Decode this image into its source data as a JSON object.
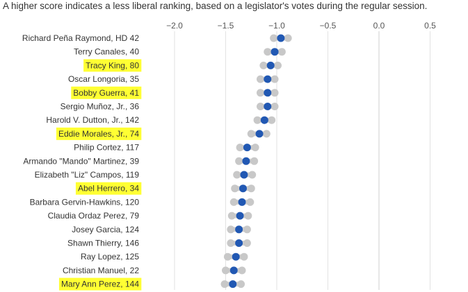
{
  "subtitle": "A higher score indicates a less liberal ranking, based on a legislator's votes during the regular session.",
  "colors": {
    "point": "#2158b3",
    "interval": "#c8c8c8",
    "highlight": "#ffff33",
    "grid": "#e2e2e2"
  },
  "chart_data": {
    "type": "scatter",
    "xlim": [
      -2.3,
      0.85
    ],
    "xticks": [
      -2.0,
      -1.5,
      -1.0,
      -0.5,
      0.0,
      0.5
    ],
    "xtick_labels": [
      "−2.0",
      "−1.5",
      "−1.0",
      "−0.5",
      "0.0",
      "0.5"
    ],
    "grid": true,
    "rows": [
      {
        "label": "Richard Peña Raymond, HD 42",
        "score": -0.96,
        "low": -1.03,
        "high": -0.89,
        "highlight": false
      },
      {
        "label": "Terry Canales, 40",
        "score": -1.02,
        "low": -1.09,
        "high": -0.95,
        "highlight": false
      },
      {
        "label": "Tracy King, 80",
        "score": -1.06,
        "low": -1.13,
        "high": -0.99,
        "highlight": true
      },
      {
        "label": "Oscar Longoria, 35",
        "score": -1.09,
        "low": -1.16,
        "high": -1.02,
        "highlight": false
      },
      {
        "label": "Bobby Guerra, 41",
        "score": -1.09,
        "low": -1.16,
        "high": -1.02,
        "highlight": true
      },
      {
        "label": "Sergio Muñoz, Jr., 36",
        "score": -1.09,
        "low": -1.16,
        "high": -1.02,
        "highlight": false
      },
      {
        "label": "Harold V. Dutton, Jr., 142",
        "score": -1.12,
        "low": -1.19,
        "high": -1.05,
        "highlight": false
      },
      {
        "label": "Eddie Morales, Jr., 74",
        "score": -1.17,
        "low": -1.25,
        "high": -1.1,
        "highlight": true
      },
      {
        "label": "Philip Cortez, 117",
        "score": -1.29,
        "low": -1.36,
        "high": -1.21,
        "highlight": false
      },
      {
        "label": "Armando \"Mando\" Martinez, 39",
        "score": -1.3,
        "low": -1.37,
        "high": -1.22,
        "highlight": false
      },
      {
        "label": "Elizabeth \"Liz\" Campos, 119",
        "score": -1.32,
        "low": -1.39,
        "high": -1.24,
        "highlight": false
      },
      {
        "label": "Abel Herrero, 34",
        "score": -1.33,
        "low": -1.41,
        "high": -1.25,
        "highlight": true
      },
      {
        "label": "Barbara Gervin-Hawkins, 120",
        "score": -1.34,
        "low": -1.42,
        "high": -1.26,
        "highlight": false
      },
      {
        "label": "Claudia Ordaz Perez, 79",
        "score": -1.36,
        "low": -1.44,
        "high": -1.28,
        "highlight": false
      },
      {
        "label": "Josey Garcia, 124",
        "score": -1.37,
        "low": -1.45,
        "high": -1.29,
        "highlight": false
      },
      {
        "label": "Shawn Thierry, 146",
        "score": -1.37,
        "low": -1.45,
        "high": -1.29,
        "highlight": false
      },
      {
        "label": "Ray Lopez, 125",
        "score": -1.4,
        "low": -1.48,
        "high": -1.32,
        "highlight": false
      },
      {
        "label": "Christian Manuel, 22",
        "score": -1.42,
        "low": -1.5,
        "high": -1.34,
        "highlight": false
      },
      {
        "label": "Mary Ann Perez, 144",
        "score": -1.43,
        "low": -1.51,
        "high": -1.35,
        "highlight": true
      }
    ]
  }
}
